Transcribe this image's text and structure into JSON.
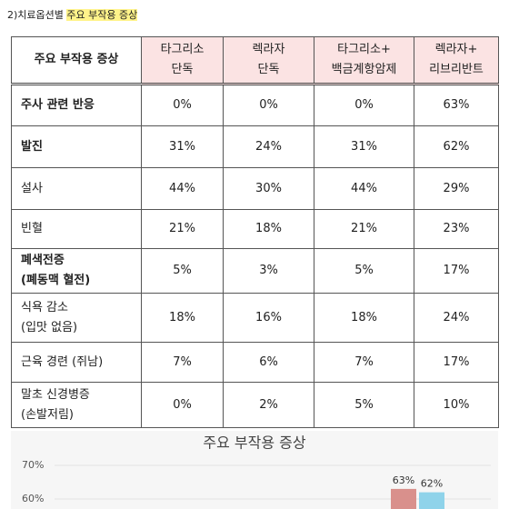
{
  "caption": {
    "prefix": "2)치료옵션별 ",
    "highlight": "주요 부작용 증상"
  },
  "table": {
    "header": [
      [
        "주요 부작용 증상"
      ],
      [
        "타그리소",
        "단독"
      ],
      [
        "렉라자",
        "단독"
      ],
      [
        "타그리소+",
        "백금계항암제"
      ],
      [
        "렉라자+",
        "리브리반트"
      ]
    ],
    "rows": [
      [
        [
          "주사 관련 반응"
        ],
        "0%",
        "0%",
        "0%",
        "63%"
      ],
      [
        [
          "발진"
        ],
        "31%",
        "24%",
        "31%",
        "62%"
      ],
      [
        [
          "설사"
        ],
        "44%",
        "30%",
        "44%",
        "29%"
      ],
      [
        [
          "빈혈"
        ],
        "21%",
        "18%",
        "21%",
        "23%"
      ],
      [
        [
          "폐색전증",
          "(폐동맥 혈전)"
        ],
        "5%",
        "3%",
        "5%",
        "17%"
      ],
      [
        [
          "식욕 감소",
          "(입맛 없음)"
        ],
        "18%",
        "16%",
        "18%",
        "24%"
      ],
      [
        [
          "근육 경련 (쥐남)"
        ],
        "7%",
        "6%",
        "7%",
        "17%"
      ],
      [
        [
          "말초 신경병증",
          "(손발저림)"
        ],
        "0%",
        "2%",
        "5%",
        "10%"
      ]
    ]
  },
  "chart": {
    "title": "주요 부작용 증상",
    "yticks": [
      {
        "value": 70,
        "label": "70%"
      },
      {
        "value": 60,
        "label": "60%"
      }
    ],
    "bars": [
      {
        "value": 63,
        "label": "63%",
        "color": "#d9908c"
      },
      {
        "value": 62,
        "label": "62%",
        "color": "#8fd3ea"
      }
    ]
  }
}
